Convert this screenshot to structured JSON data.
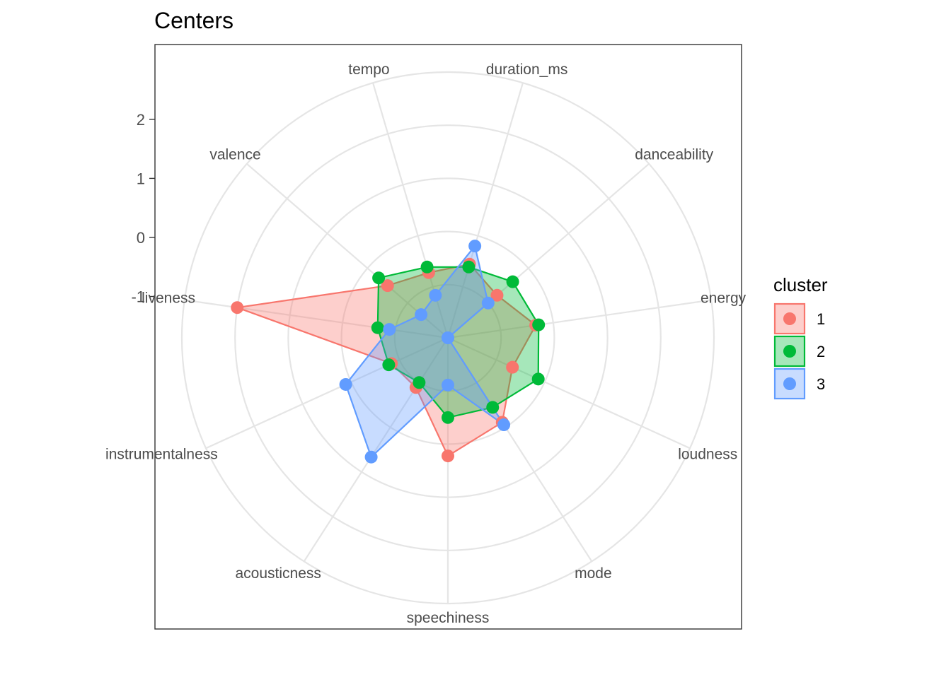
{
  "chart_data": {
    "type": "radar",
    "title": "Centers",
    "axes": [
      "duration_ms",
      "danceability",
      "energy",
      "loudness",
      "mode",
      "speechiness",
      "acousticness",
      "instrumentalness",
      "liveness",
      "valence",
      "tempo"
    ],
    "y_ticks": [
      2,
      1,
      0,
      -1
    ],
    "rmin": -1.7,
    "rmax": 2.8,
    "grid": true,
    "legend": {
      "title": "cluster",
      "position": "right"
    },
    "series": [
      {
        "name": "1",
        "color": "#F8766D",
        "values": [
          -0.4,
          -0.6,
          -0.2,
          -0.5,
          0.0,
          0.3,
          -0.7,
          -0.65,
          1.9,
          -0.35,
          -0.55
        ]
      },
      {
        "name": "2",
        "color": "#00BA38",
        "values": [
          -0.45,
          -0.25,
          -0.15,
          -0.02,
          -0.3,
          -0.35,
          -0.8,
          -0.6,
          -0.5,
          -0.15,
          -0.45
        ]
      },
      {
        "name": "3",
        "color": "#619CFF",
        "values": [
          -0.08,
          -0.8,
          -1.7,
          -1.7,
          0.05,
          -0.9,
          0.7,
          0.2,
          -0.7,
          -1.1,
          -0.95
        ]
      }
    ]
  }
}
